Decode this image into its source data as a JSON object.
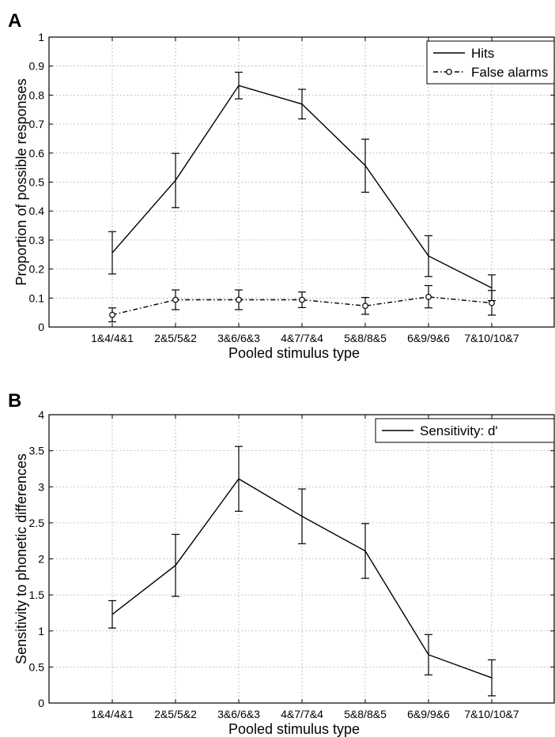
{
  "chart_data": [
    {
      "panel": "A",
      "type": "line",
      "categories": [
        "1&4/4&1",
        "2&5/5&2",
        "3&6/6&3",
        "4&7/7&4",
        "5&8/8&5",
        "6&9/9&6",
        "7&10/10&7"
      ],
      "xlabel": "Pooled stimulus type",
      "ylabel": "Proportion of possible responses",
      "ylim": [
        0,
        1
      ],
      "yticks": [
        0,
        0.1,
        0.2,
        0.3,
        0.4,
        0.5,
        0.6,
        0.7,
        0.8,
        0.9,
        1
      ],
      "grid": true,
      "legend": "top-right",
      "series": [
        {
          "name": "Hits",
          "style": "solid",
          "marker": "none",
          "color": "#000000",
          "values": [
            0.256,
            0.506,
            0.833,
            0.769,
            0.557,
            0.245,
            0.135
          ],
          "err_low": [
            0.183,
            0.412,
            0.787,
            0.718,
            0.465,
            0.174,
            0.091
          ],
          "err_high": [
            0.329,
            0.599,
            0.879,
            0.82,
            0.648,
            0.315,
            0.18
          ]
        },
        {
          "name": "False alarms",
          "style": "dash-dot",
          "marker": "circle",
          "color": "#000000",
          "values": [
            0.042,
            0.094,
            0.094,
            0.094,
            0.073,
            0.104,
            0.083
          ],
          "err_low": [
            0.018,
            0.06,
            0.06,
            0.067,
            0.044,
            0.066,
            0.041
          ],
          "err_high": [
            0.066,
            0.128,
            0.128,
            0.121,
            0.102,
            0.143,
            0.126
          ]
        }
      ]
    },
    {
      "panel": "B",
      "type": "line",
      "categories": [
        "1&4/4&1",
        "2&5/5&2",
        "3&6/6&3",
        "4&7/7&4",
        "5&8/8&5",
        "6&9/9&6",
        "7&10/10&7"
      ],
      "xlabel": "Pooled stimulus type",
      "ylabel": "Sensitivity to phonetic differences",
      "ylim": [
        0,
        4
      ],
      "yticks": [
        0,
        0.5,
        1,
        1.5,
        2,
        2.5,
        3,
        3.5,
        4
      ],
      "grid": true,
      "legend": "top-right",
      "series": [
        {
          "name": "Sensitivity: d'",
          "style": "solid",
          "marker": "none",
          "color": "#000000",
          "values": [
            1.23,
            1.91,
            3.11,
            2.59,
            2.11,
            0.67,
            0.35
          ],
          "err_low": [
            1.04,
            1.48,
            2.66,
            2.21,
            1.73,
            0.39,
            0.1
          ],
          "err_high": [
            1.42,
            2.34,
            3.56,
            2.97,
            2.49,
            0.95,
            0.6
          ]
        }
      ]
    }
  ]
}
